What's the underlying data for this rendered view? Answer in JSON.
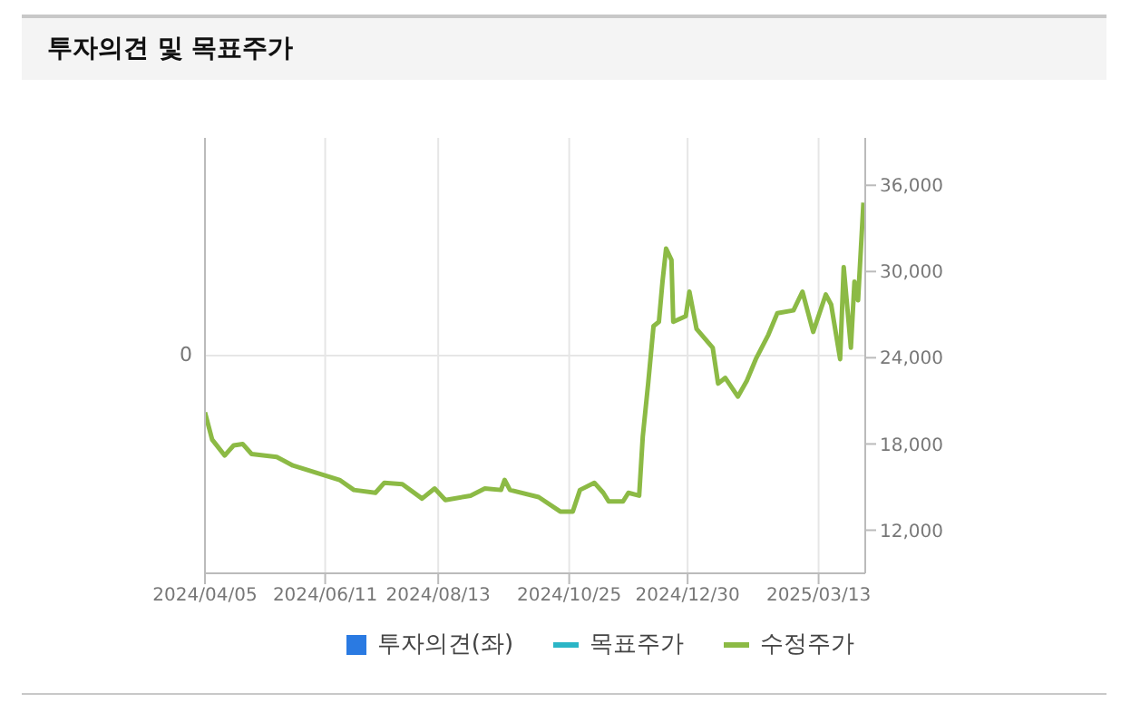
{
  "chart_data": {
    "type": "line",
    "title": "투자의견 및 목표주가",
    "x": [
      "2024-04-05",
      "2024-04-09",
      "2024-04-16",
      "2024-04-21",
      "2024-04-26",
      "2024-05-01",
      "2024-05-15",
      "2024-05-24",
      "2024-06-06",
      "2024-06-19",
      "2024-06-27",
      "2024-07-09",
      "2024-07-14",
      "2024-07-24",
      "2024-08-04",
      "2024-08-11",
      "2024-08-17",
      "2024-08-31",
      "2024-09-08",
      "2024-09-17",
      "2024-09-19",
      "2024-09-22",
      "2024-10-08",
      "2024-10-20",
      "2024-10-27",
      "2024-10-31",
      "2024-11-08",
      "2024-11-13",
      "2024-11-16",
      "2024-11-24",
      "2024-11-27",
      "2024-12-03",
      "2024-12-05",
      "2024-12-08",
      "2024-12-11",
      "2024-12-14",
      "2024-12-16",
      "2024-12-18",
      "2024-12-21",
      "2024-12-22",
      "2024-12-29",
      "2024-12-31",
      "2025-01-04",
      "2025-01-13",
      "2025-01-16",
      "2025-01-20",
      "2025-01-27",
      "2025-02-01",
      "2025-02-06",
      "2025-02-13",
      "2025-02-18",
      "2025-02-27",
      "2025-03-04",
      "2025-03-10",
      "2025-03-17",
      "2025-03-20",
      "2025-03-25",
      "2025-03-27",
      "2025-03-31",
      "2025-04-02",
      "2025-04-04",
      "2025-04-07"
    ],
    "series": [
      {
        "name": "투자의견(좌)",
        "type": "bar",
        "color": "#2a7ae2",
        "values": [
          null,
          null,
          null,
          null,
          null,
          null,
          null,
          null,
          null,
          null,
          null,
          null,
          null,
          null,
          null,
          null,
          null,
          null,
          null,
          null,
          null,
          null,
          null,
          null,
          null,
          null,
          null,
          null,
          null,
          null,
          null,
          null,
          null,
          null,
          null,
          null,
          null,
          null,
          null,
          null,
          null,
          null,
          null,
          null,
          null,
          null,
          null,
          null,
          null,
          null,
          null,
          null,
          null,
          null,
          null,
          null,
          null,
          null,
          null,
          null,
          null,
          null
        ]
      },
      {
        "name": "목표주가",
        "axis": "y2",
        "color": "#2bb5c6",
        "values": [
          null,
          null,
          null,
          null,
          null,
          null,
          null,
          null,
          null,
          null,
          null,
          null,
          null,
          null,
          null,
          null,
          null,
          null,
          null,
          null,
          null,
          null,
          null,
          null,
          null,
          null,
          null,
          null,
          null,
          null,
          null,
          null,
          null,
          null,
          null,
          null,
          null,
          null,
          null,
          null,
          null,
          null,
          null,
          null,
          null,
          null,
          null,
          null,
          null,
          null,
          null,
          null,
          null,
          null,
          null,
          null,
          null,
          null,
          null,
          null,
          null,
          null
        ]
      },
      {
        "name": "수정주가",
        "axis": "y2",
        "color": "#8cba45",
        "values": [
          20200,
          18300,
          17200,
          17900,
          18000,
          17300,
          17100,
          16500,
          16000,
          15500,
          14800,
          14600,
          15300,
          15200,
          14200,
          14900,
          14100,
          14400,
          14900,
          14800,
          15500,
          14800,
          14300,
          13300,
          13300,
          14800,
          15300,
          14600,
          14000,
          14000,
          14600,
          14400,
          18500,
          22200,
          26200,
          26500,
          29300,
          31600,
          30800,
          26500,
          26900,
          28600,
          26000,
          24700,
          22200,
          22600,
          21300,
          22400,
          23900,
          25600,
          27100,
          27300,
          28600,
          25800,
          28400,
          27700,
          23900,
          30300,
          24700,
          29300,
          28000,
          34800
        ]
      }
    ],
    "xlim": [
      "2024-04-05",
      "2025-04-08"
    ],
    "xticks": [
      {
        "value": "2024-04-05",
        "label": "2024/04/05"
      },
      {
        "value": "2024-06-11",
        "label": "2024/06/11"
      },
      {
        "value": "2024-08-13",
        "label": "2024/08/13"
      },
      {
        "value": "2024-10-25",
        "label": "2024/10/25"
      },
      {
        "value": "2024-12-30",
        "label": "2024/12/30"
      },
      {
        "value": "2025-03-13",
        "label": "2025/03/13"
      }
    ],
    "annotations": [
      "0"
    ],
    "y2lim": [
      9000,
      39300
    ],
    "y2ticks": [
      {
        "value": 12000,
        "label": "12,000"
      },
      {
        "value": 18000,
        "label": "18,000"
      },
      {
        "value": 24000,
        "label": "24,000"
      },
      {
        "value": 30000,
        "label": "30,000"
      },
      {
        "value": 36000,
        "label": "36,000"
      }
    ],
    "grid": true,
    "legend": "bottom",
    "marker": "none",
    "line_style": "solid"
  }
}
